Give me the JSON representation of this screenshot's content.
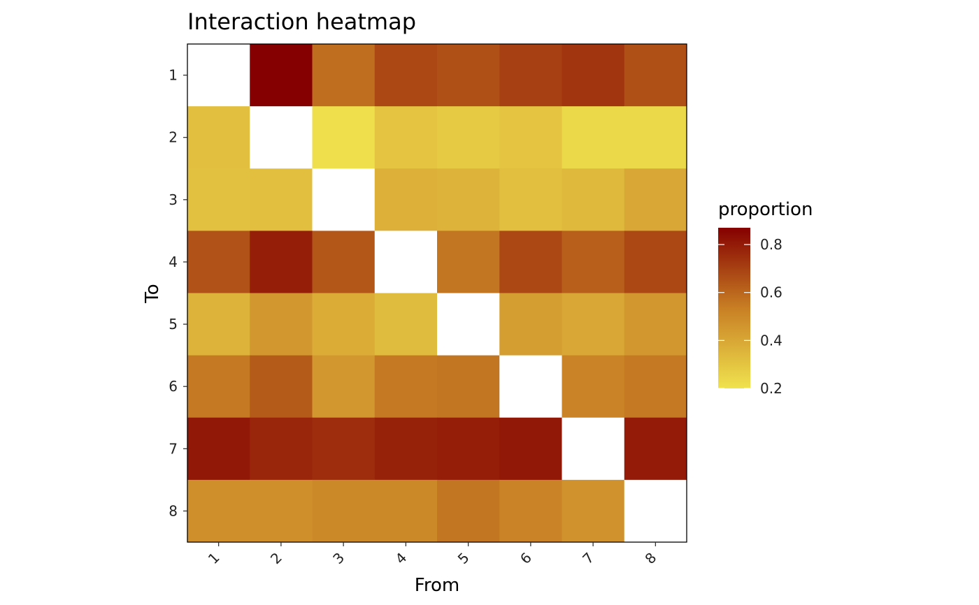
{
  "chart_data": {
    "type": "heatmap",
    "title": "Interaction heatmap",
    "xlabel": "From",
    "ylabel": "To",
    "x_categories": [
      "1",
      "2",
      "3",
      "4",
      "5",
      "6",
      "7",
      "8"
    ],
    "y_categories": [
      "1",
      "2",
      "3",
      "4",
      "5",
      "6",
      "7",
      "8"
    ],
    "values": [
      [
        null,
        0.87,
        0.58,
        0.68,
        0.66,
        0.7,
        0.73,
        0.66
      ],
      [
        0.32,
        null,
        0.21,
        0.3,
        0.28,
        0.3,
        0.23,
        0.23
      ],
      [
        0.31,
        0.32,
        null,
        0.37,
        0.36,
        0.32,
        0.34,
        0.4
      ],
      [
        0.65,
        0.79,
        0.64,
        null,
        0.56,
        0.68,
        0.62,
        0.68
      ],
      [
        0.36,
        0.45,
        0.38,
        0.33,
        null,
        0.43,
        0.4,
        0.45
      ],
      [
        0.55,
        0.63,
        0.45,
        0.55,
        0.56,
        null,
        0.52,
        0.55
      ],
      [
        0.81,
        0.77,
        0.75,
        0.78,
        0.79,
        0.81,
        null,
        0.8
      ],
      [
        0.48,
        0.48,
        0.5,
        0.5,
        0.56,
        0.52,
        0.47,
        null
      ]
    ],
    "missing_fill": "#ffffff",
    "legend": {
      "title": "proportion",
      "placement": "right",
      "ticks": [
        "0.8",
        "0.6",
        "0.4",
        "0.2"
      ],
      "tick_values": [
        0.8,
        0.6,
        0.4,
        0.2
      ],
      "range": [
        0.2,
        0.87
      ]
    },
    "color_scale": {
      "low": "#f0e24e",
      "mid": "#c87f24",
      "high": "#850000"
    }
  }
}
